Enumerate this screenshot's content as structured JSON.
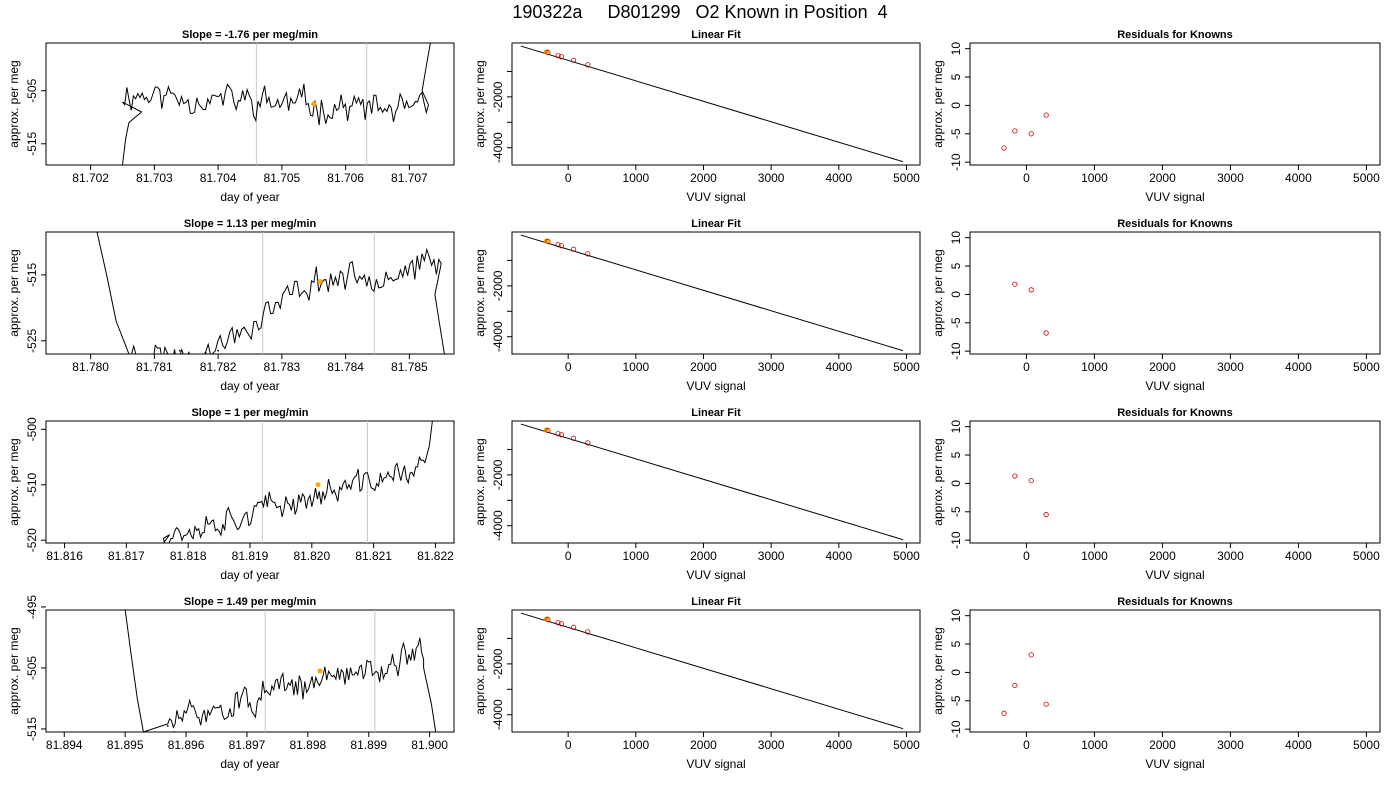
{
  "title": "190322a     D801299   O2 Known in Position  4",
  "colors": {
    "line": "#000000",
    "marker": "#ffa500",
    "residual": "#cc0000",
    "vline": "#c8c8c8"
  },
  "rows": [
    {
      "time": {
        "title": "Slope =  -1.76  per meg/min",
        "xlabel": "day of year",
        "ylabel": "approx. per meg",
        "xlim": [
          81.7013,
          81.7077
        ],
        "ylim": [
          -519,
          -496
        ],
        "xticks": [
          81.702,
          81.703,
          81.704,
          81.705,
          81.706,
          81.707
        ],
        "xtick_labels": [
          "81.702",
          "81.703",
          "81.704",
          "81.705",
          "81.706",
          "81.707"
        ],
        "yticks": [
          -515,
          -505
        ],
        "ytick_labels": [
          "-515",
          "-505"
        ],
        "vlines": [
          81.7046,
          81.70633
        ],
        "marker": [
          81.7055,
          -507.5
        ],
        "trace": {
          "start": 81.7025,
          "end": 81.7073,
          "pre": [
            [
              81.7025,
              -519
            ],
            [
              81.70255,
              -514
            ],
            [
              81.7026,
              -511
            ],
            [
              81.7027,
              -510
            ],
            [
              81.7028,
              -509
            ]
          ],
          "level_start": -505.5,
          "level_end": -509,
          "noise": 2.2,
          "n": 140,
          "seed": 11,
          "post": [
            [
              81.7072,
              -505
            ],
            [
              81.70727,
              -500
            ],
            [
              81.70733,
              -496
            ]
          ]
        }
      },
      "fit": {
        "title": "Linear Fit",
        "xlabel": "VUV signal",
        "ylabel": "approx. per meg",
        "xlim": [
          -830,
          5200
        ],
        "ylim": [
          -4680,
          120
        ],
        "xticks": [
          0,
          1000,
          2000,
          3000,
          4000,
          5000
        ],
        "xtick_labels": [
          "0",
          "1000",
          "2000",
          "3000",
          "4000",
          "5000"
        ],
        "yticks": [
          -4000,
          -3000,
          -2000,
          -1000
        ],
        "ytick_labels": [
          "-4000",
          "",
          "-2000",
          ""
        ],
        "line": {
          "x0": -700,
          "y0": 0,
          "x1": 4950,
          "y1": -4550
        },
        "points": [
          [
            -300,
            -250
          ],
          [
            -150,
            -380
          ],
          [
            -100,
            -420
          ],
          [
            80,
            -560
          ],
          [
            290,
            -740
          ]
        ],
        "marker": [
          -320,
          -230
        ]
      },
      "resid": {
        "title": "Residuals for Knowns",
        "xlabel": "VUV signal",
        "ylabel": "approx. per meg",
        "xlim": [
          -830,
          5200
        ],
        "ylim": [
          -10.5,
          11
        ],
        "xticks": [
          0,
          1000,
          2000,
          3000,
          4000,
          5000
        ],
        "xtick_labels": [
          "0",
          "1000",
          "2000",
          "3000",
          "4000",
          "5000"
        ],
        "yticks": [
          -10,
          -5,
          0,
          5,
          10
        ],
        "ytick_labels": [
          "-10",
          "-5",
          "0",
          "5",
          "10"
        ],
        "points": [
          [
            -330,
            -7.5
          ],
          [
            -170,
            -4.5
          ],
          [
            70,
            -5
          ],
          [
            290,
            -1.7
          ]
        ]
      }
    },
    {
      "time": {
        "title": "Slope =  1.13  per meg/min",
        "xlabel": "day of year",
        "ylabel": "approx. per meg",
        "xlim": [
          81.7793,
          81.7857
        ],
        "ylim": [
          -527,
          -508.5
        ],
        "xticks": [
          81.78,
          81.781,
          81.782,
          81.783,
          81.784,
          81.785
        ],
        "xtick_labels": [
          "81.780",
          "81.781",
          "81.782",
          "81.783",
          "81.784",
          "81.785"
        ],
        "yticks": [
          -525,
          -515
        ],
        "ytick_labels": [
          "-525",
          "-515"
        ],
        "vlines": [
          81.7827,
          81.78445
        ],
        "marker": [
          81.7836,
          -516
        ],
        "trace": {
          "start": 81.7806,
          "end": 81.7855,
          "pre": [
            [
              81.7801,
              -508.5
            ],
            [
              81.78025,
              -515
            ],
            [
              81.7804,
              -522
            ],
            [
              81.7806,
              -527
            ]
          ],
          "gaps": [
            [
              81.7814,
              -526.5
            ],
            [
              81.7818,
              -526.8
            ],
            [
              81.782,
              -526.5
            ]
          ],
          "ramp_from": 81.7818,
          "level_start": -527,
          "level_mid": -516,
          "level_end": -513.5,
          "noise": 1.7,
          "n": 130,
          "seed": 23,
          "post": [
            [
              81.7854,
              -518
            ],
            [
              81.7855,
              -524
            ],
            [
              81.78555,
              -527
            ]
          ]
        }
      },
      "fit": {
        "title": "Linear Fit",
        "xlabel": "VUV signal",
        "ylabel": "approx. per meg",
        "xlim": [
          -830,
          5200
        ],
        "ylim": [
          -4680,
          120
        ],
        "xticks": [
          0,
          1000,
          2000,
          3000,
          4000,
          5000
        ],
        "xtick_labels": [
          "0",
          "1000",
          "2000",
          "3000",
          "4000",
          "5000"
        ],
        "yticks": [
          -4000,
          -3000,
          -2000,
          -1000
        ],
        "ytick_labels": [
          "-4000",
          "",
          "-2000",
          ""
        ],
        "line": {
          "x0": -700,
          "y0": 0,
          "x1": 4950,
          "y1": -4550
        },
        "points": [
          [
            -300,
            -250
          ],
          [
            -150,
            -380
          ],
          [
            -100,
            -420
          ],
          [
            80,
            -560
          ],
          [
            290,
            -740
          ]
        ],
        "marker": [
          -320,
          -230
        ]
      },
      "resid": {
        "title": "Residuals for Knowns",
        "xlabel": "VUV signal",
        "ylabel": "approx. per meg",
        "xlim": [
          -830,
          5200
        ],
        "ylim": [
          -10.5,
          11
        ],
        "xticks": [
          0,
          1000,
          2000,
          3000,
          4000,
          5000
        ],
        "xtick_labels": [
          "0",
          "1000",
          "2000",
          "3000",
          "4000",
          "5000"
        ],
        "yticks": [
          -10,
          -5,
          0,
          5,
          10
        ],
        "ytick_labels": [
          "-10",
          "-5",
          "0",
          "5",
          "10"
        ],
        "points": [
          [
            -170,
            1.8
          ],
          [
            70,
            0.8
          ],
          [
            290,
            -6.8
          ]
        ]
      }
    },
    {
      "time": {
        "title": "Slope =  1  per meg/min",
        "xlabel": "day of year",
        "ylabel": "approx. per meg",
        "xlim": [
          81.8157,
          81.8223
        ],
        "ylim": [
          -520.5,
          -498.5
        ],
        "xticks": [
          81.816,
          81.817,
          81.818,
          81.819,
          81.82,
          81.821,
          81.822
        ],
        "xtick_labels": [
          "81.816",
          "81.817",
          "81.818",
          "81.819",
          "81.820",
          "81.821",
          "81.822"
        ],
        "yticks": [
          -520,
          -510,
          -500
        ],
        "ytick_labels": [
          "-520",
          "-510",
          "-500"
        ],
        "vlines": [
          81.8192,
          81.8209
        ],
        "marker": [
          81.8201,
          -510
        ],
        "trace": {
          "start": 81.8176,
          "end": 81.8218,
          "pre": [
            [
              81.8176,
              -520.5
            ],
            [
              81.8177,
              -519
            ]
          ],
          "level_start": -519,
          "level_end": -507,
          "noise": 1.8,
          "n": 140,
          "seed": 37,
          "post": [
            [
              81.82183,
              -506
            ],
            [
              81.8219,
              -503
            ],
            [
              81.82195,
              -498.5
            ]
          ]
        }
      },
      "fit": {
        "title": "Linear Fit",
        "xlabel": "VUV signal",
        "ylabel": "approx. per meg",
        "xlim": [
          -830,
          5200
        ],
        "ylim": [
          -4680,
          120
        ],
        "xticks": [
          0,
          1000,
          2000,
          3000,
          4000,
          5000
        ],
        "xtick_labels": [
          "0",
          "1000",
          "2000",
          "3000",
          "4000",
          "5000"
        ],
        "yticks": [
          -4000,
          -3000,
          -2000,
          -1000
        ],
        "ytick_labels": [
          "-4000",
          "",
          "-2000",
          ""
        ],
        "line": {
          "x0": -700,
          "y0": 0,
          "x1": 4950,
          "y1": -4550
        },
        "points": [
          [
            -300,
            -250
          ],
          [
            -150,
            -380
          ],
          [
            -100,
            -420
          ],
          [
            80,
            -560
          ],
          [
            290,
            -740
          ]
        ],
        "marker": [
          -320,
          -230
        ]
      },
      "resid": {
        "title": "Residuals for Knowns",
        "xlabel": "VUV signal",
        "ylabel": "approx. per meg",
        "xlim": [
          -830,
          5200
        ],
        "ylim": [
          -10.5,
          11
        ],
        "xticks": [
          0,
          1000,
          2000,
          3000,
          4000,
          5000
        ],
        "xtick_labels": [
          "0",
          "1000",
          "2000",
          "3000",
          "4000",
          "5000"
        ],
        "yticks": [
          -10,
          -5,
          0,
          5,
          10
        ],
        "ytick_labels": [
          "-10",
          "-5",
          "0",
          "5",
          "10"
        ],
        "points": [
          [
            -170,
            1.3
          ],
          [
            70,
            0.5
          ],
          [
            290,
            -5.5
          ]
        ]
      }
    },
    {
      "time": {
        "title": "Slope =  1.49  per meg/min",
        "xlabel": "day of year",
        "ylabel": "approx. per meg",
        "xlim": [
          81.8937,
          81.9004
        ],
        "ylim": [
          -515.5,
          -495.5
        ],
        "xticks": [
          81.894,
          81.895,
          81.896,
          81.897,
          81.898,
          81.899,
          81.9
        ],
        "xtick_labels": [
          "81.894",
          "81.895",
          "81.896",
          "81.897",
          "81.898",
          "81.899",
          "81.900"
        ],
        "yticks": [
          -515,
          -505,
          -495
        ],
        "ytick_labels": [
          "-515",
          "-505",
          "-495"
        ],
        "vlines": [
          81.8973,
          81.8991
        ],
        "marker": [
          81.8982,
          -505.5
        ],
        "trace": {
          "start": 81.8957,
          "end": 81.8999,
          "pre": [
            [
              81.895,
              -495.5
            ],
            [
              81.8951,
              -503
            ],
            [
              81.8952,
              -510
            ],
            [
              81.8953,
              -515.5
            ]
          ],
          "gaps": [
            [
              81.8957,
              -514.5
            ],
            [
              81.8958,
              -515.5
            ]
          ],
          "level_start": -514,
          "level_end": -502.5,
          "noise": 1.8,
          "n": 140,
          "seed": 51,
          "post": [
            [
              81.8999,
              -505
            ],
            [
              81.90003,
              -511
            ],
            [
              81.9001,
              -515.5
            ]
          ]
        }
      },
      "fit": {
        "title": "Linear Fit",
        "xlabel": "VUV signal",
        "ylabel": "approx. per meg",
        "xlim": [
          -830,
          5200
        ],
        "ylim": [
          -4680,
          120
        ],
        "xticks": [
          0,
          1000,
          2000,
          3000,
          4000,
          5000
        ],
        "xtick_labels": [
          "0",
          "1000",
          "2000",
          "3000",
          "4000",
          "5000"
        ],
        "yticks": [
          -4000,
          -3000,
          -2000,
          -1000
        ],
        "ytick_labels": [
          "-4000",
          "",
          "-2000",
          ""
        ],
        "line": {
          "x0": -700,
          "y0": 0,
          "x1": 4950,
          "y1": -4550
        },
        "points": [
          [
            -300,
            -250
          ],
          [
            -150,
            -380
          ],
          [
            -100,
            -420
          ],
          [
            80,
            -560
          ],
          [
            290,
            -740
          ]
        ],
        "marker": [
          -320,
          -230
        ]
      },
      "resid": {
        "title": "Residuals for Knowns",
        "xlabel": "VUV signal",
        "ylabel": "approx. per meg",
        "xlim": [
          -830,
          5200
        ],
        "ylim": [
          -10.5,
          11
        ],
        "xticks": [
          0,
          1000,
          2000,
          3000,
          4000,
          5000
        ],
        "xtick_labels": [
          "0",
          "1000",
          "2000",
          "3000",
          "4000",
          "5000"
        ],
        "yticks": [
          -10,
          -5,
          0,
          5,
          10
        ],
        "ytick_labels": [
          "-10",
          "-5",
          "0",
          "5",
          "10"
        ],
        "points": [
          [
            -330,
            -7.2
          ],
          [
            -170,
            -2.3
          ],
          [
            70,
            3.1
          ],
          [
            290,
            -5.6
          ]
        ]
      }
    }
  ]
}
